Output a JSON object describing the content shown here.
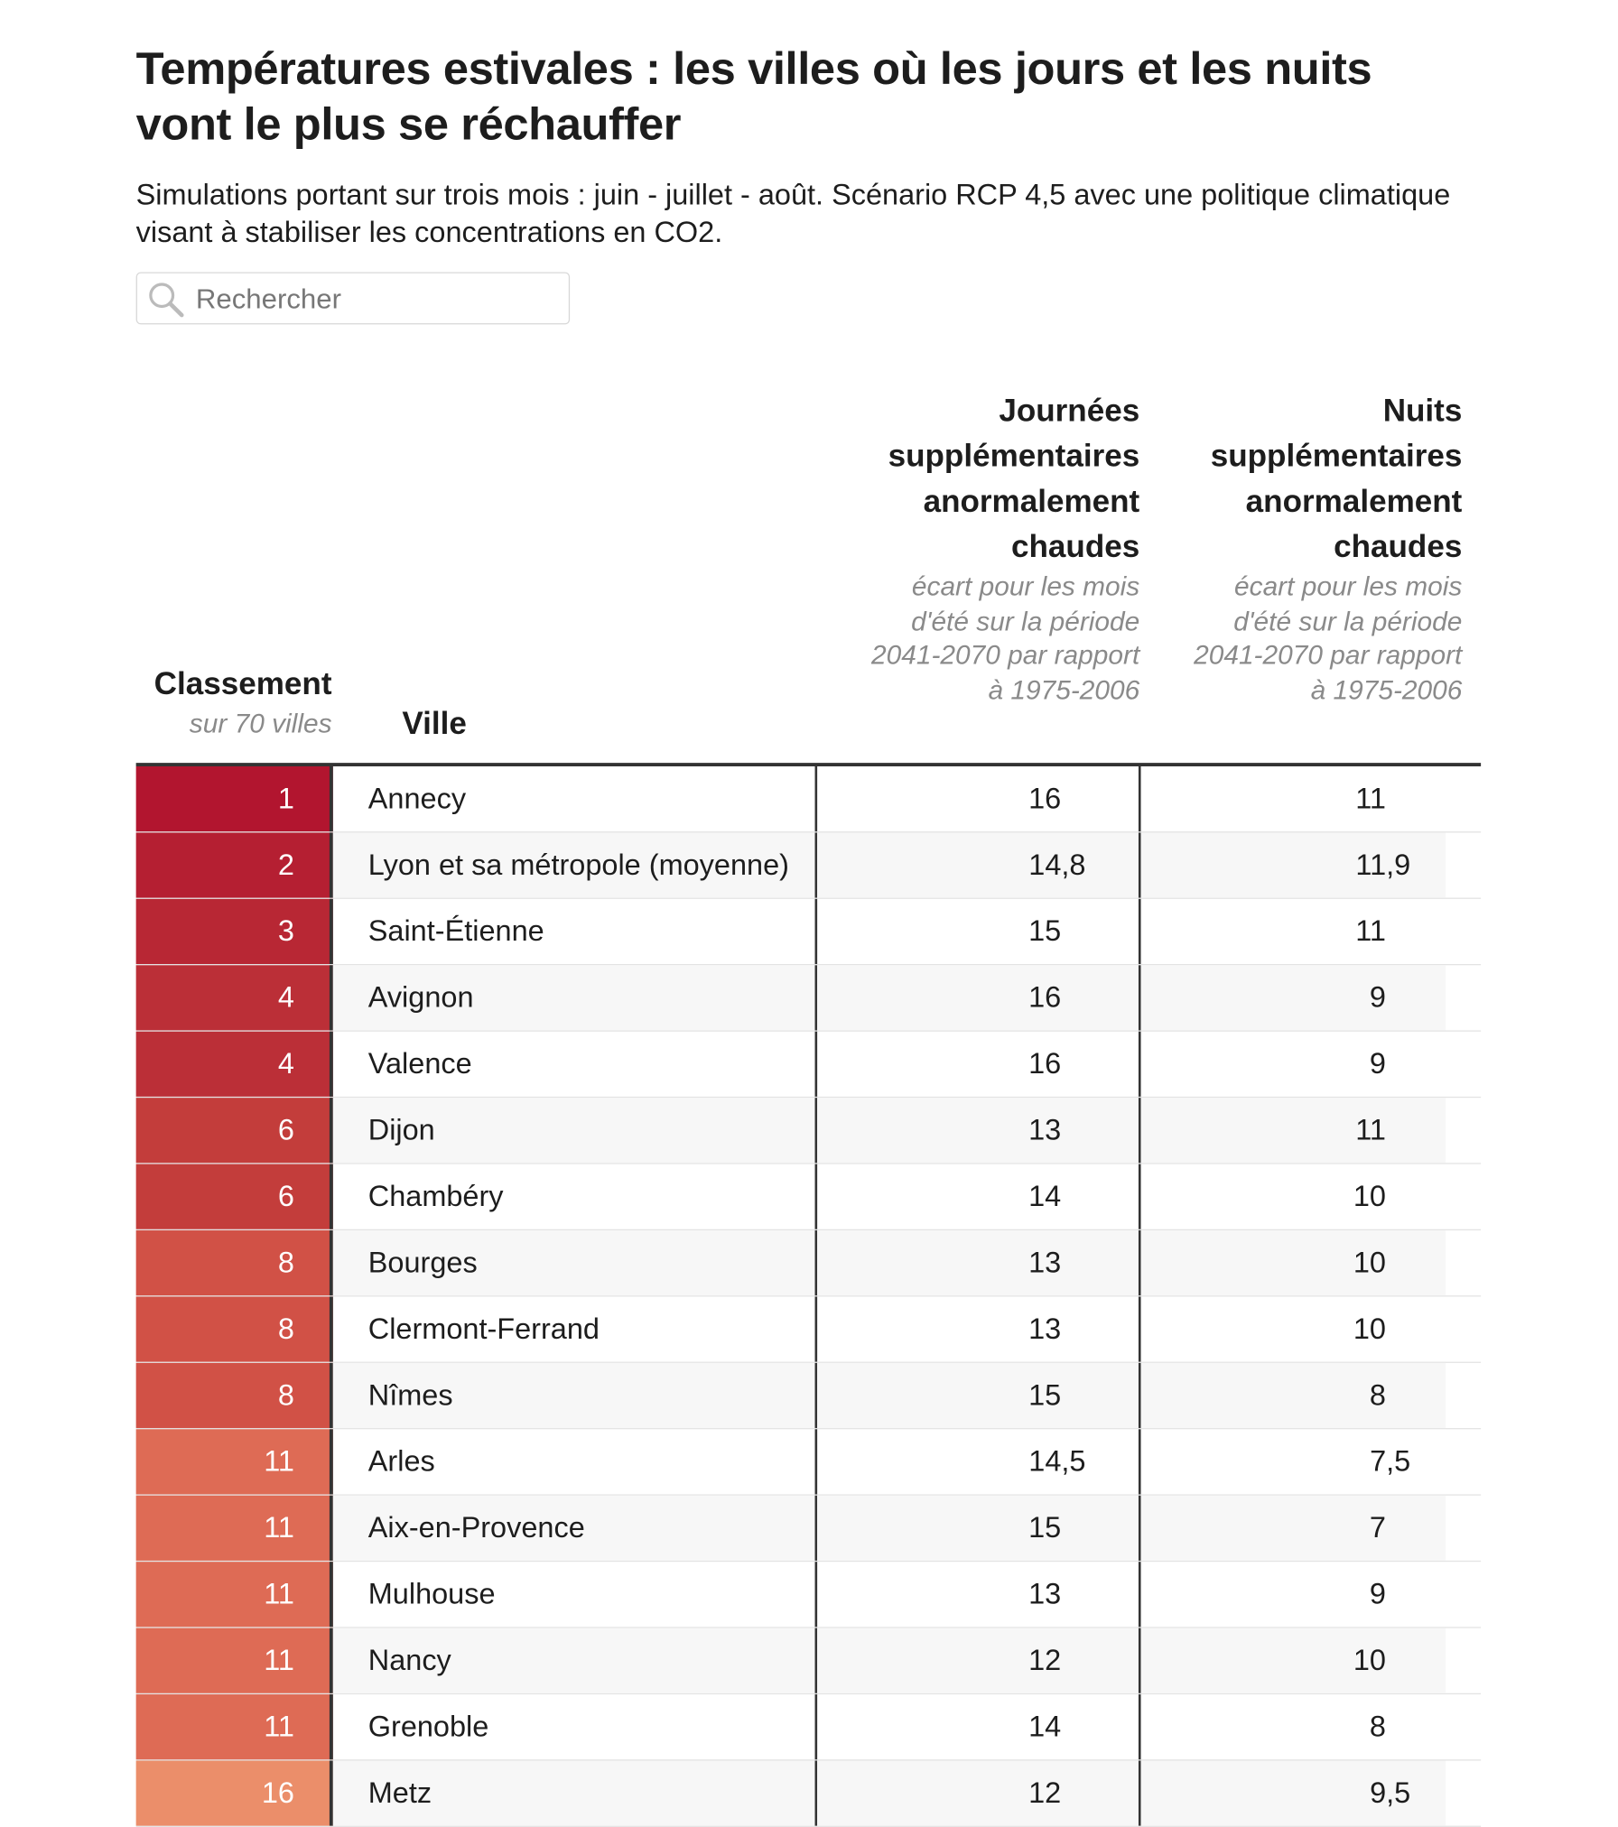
{
  "header": {
    "title": "Températures estivales : les villes où les jours et les nuits vont le plus se réchauffer",
    "subtitle": "Simulations portant sur trois mois : juin - juillet - août. Scénario RCP 4,5 avec une politique climatique visant à stabiliser les concentrations en CO2.",
    "search_placeholder": "Rechercher"
  },
  "table": {
    "columns": [
      {
        "title": "Classement",
        "note": "sur 70 villes"
      },
      {
        "title": "Ville"
      },
      {
        "title": "Journées supplémentaires anormalement chaudes",
        "note": "écart pour les mois d'été sur la période 2041-2070 par rapport à 1975-2006"
      },
      {
        "title": "Nuits supplémentaires anormalement chaudes",
        "note": "écart pour les mois d'été sur la période 2041-2070 par rapport à 1975-2006"
      }
    ],
    "rows": [
      {
        "rank": "1",
        "city": "Annecy",
        "days": "16",
        "nights": "11",
        "color": "#b2152f"
      },
      {
        "rank": "2",
        "city": "Lyon et sa métropole (moyenne)",
        "days": "14,8",
        "nights": "11,9",
        "color": "#b51f32"
      },
      {
        "rank": "3",
        "city": "Saint-Étienne",
        "days": "15",
        "nights": "11",
        "color": "#b82734"
      },
      {
        "rank": "4",
        "city": "Avignon",
        "days": "16",
        "nights": "9",
        "color": "#bb2f37"
      },
      {
        "rank": "4",
        "city": "Valence",
        "days": "16",
        "nights": "9",
        "color": "#bb2f37"
      },
      {
        "rank": "6",
        "city": "Dijon",
        "days": "13",
        "nights": "11",
        "color": "#c33d3b"
      },
      {
        "rank": "6",
        "city": "Chambéry",
        "days": "14",
        "nights": "10",
        "color": "#c33d3b"
      },
      {
        "rank": "8",
        "city": "Bourges",
        "days": "13",
        "nights": "10",
        "color": "#d15146"
      },
      {
        "rank": "8",
        "city": "Clermont-Ferrand",
        "days": "13",
        "nights": "10",
        "color": "#d15146"
      },
      {
        "rank": "8",
        "city": "Nîmes",
        "days": "15",
        "nights": "8",
        "color": "#d15146"
      },
      {
        "rank": "11",
        "city": "Arles",
        "days": "14,5",
        "nights": "7,5",
        "color": "#de6b55"
      },
      {
        "rank": "11",
        "city": "Aix-en-Provence",
        "days": "15",
        "nights": "7",
        "color": "#de6b55"
      },
      {
        "rank": "11",
        "city": "Mulhouse",
        "days": "13",
        "nights": "9",
        "color": "#de6b55"
      },
      {
        "rank": "11",
        "city": "Nancy",
        "days": "12",
        "nights": "10",
        "color": "#de6b55"
      },
      {
        "rank": "11",
        "city": "Grenoble",
        "days": "14",
        "nights": "8",
        "color": "#de6b55"
      },
      {
        "rank": "16",
        "city": "Metz",
        "days": "12",
        "nights": "9,5",
        "color": "#eb8e6a"
      }
    ]
  }
}
